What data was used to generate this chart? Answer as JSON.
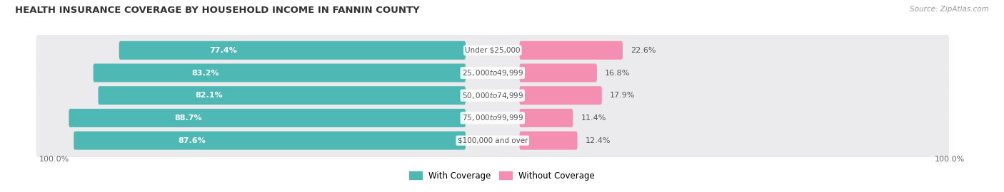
{
  "title": "HEALTH INSURANCE COVERAGE BY HOUSEHOLD INCOME IN FANNIN COUNTY",
  "source": "Source: ZipAtlas.com",
  "categories": [
    "Under $25,000",
    "$25,000 to $49,999",
    "$50,000 to $74,999",
    "$75,000 to $99,999",
    "$100,000 and over"
  ],
  "with_coverage": [
    77.4,
    83.2,
    82.1,
    88.7,
    87.6
  ],
  "without_coverage": [
    22.6,
    16.8,
    17.9,
    11.4,
    12.4
  ],
  "color_with": "#4db8b4",
  "color_without": "#f48fb1",
  "row_bg_color": "#ebebed",
  "title_fontsize": 9.5,
  "label_fontsize": 8,
  "legend_fontsize": 8.5,
  "axis_label": "100.0%"
}
